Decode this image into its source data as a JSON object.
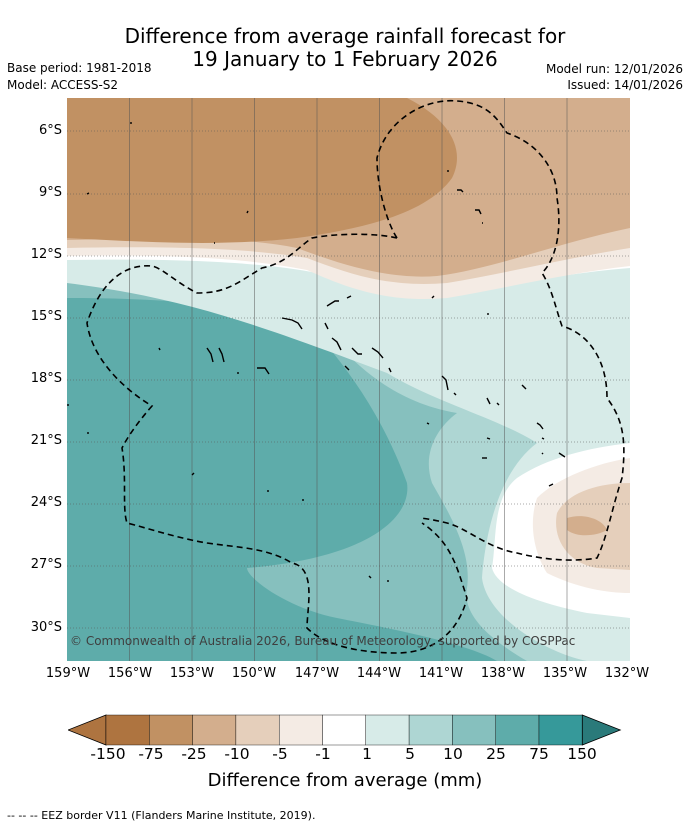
{
  "header": {
    "title_line1": "Difference from average rainfall forecast for",
    "title_line2": "19 January to 1 February 2026",
    "base_period": "Base period: 1981-2018",
    "model": "Model: ACCESS-S2",
    "model_run": "Model run: 12/01/2026",
    "issued": "Issued: 14/01/2026"
  },
  "map": {
    "latitude_labels": [
      "6°S",
      "9°S",
      "12°S",
      "15°S",
      "18°S",
      "21°S",
      "24°S",
      "27°S",
      "30°S"
    ],
    "longitude_labels": [
      "159°W",
      "156°W",
      "153°W",
      "150°W",
      "147°W",
      "144°W",
      "141°W",
      "138°W",
      "135°W",
      "132°W"
    ],
    "copyright": "© Commonwealth of Australia 2026, Bureau of Meteorology, supported by COSPPac"
  },
  "colorbar": {
    "title": "Difference from average (mm)",
    "tick_labels": [
      "-150",
      "-75",
      "-25",
      "-10",
      "-5",
      "-1",
      "1",
      "5",
      "10",
      "25",
      "75",
      "150"
    ],
    "colors": [
      "#ae7440",
      "#c19163",
      "#d3ae8d",
      "#e5cfbb",
      "#f4ebe4",
      "#ffffff",
      "#d7ebe8",
      "#aed6d3",
      "#86c0be",
      "#5eacaa",
      "#36999a",
      "#2a7a7a"
    ]
  },
  "footer": {
    "legend": "-- -- -- EEZ border V11 (Flanders Marine Institute, 2019)."
  }
}
